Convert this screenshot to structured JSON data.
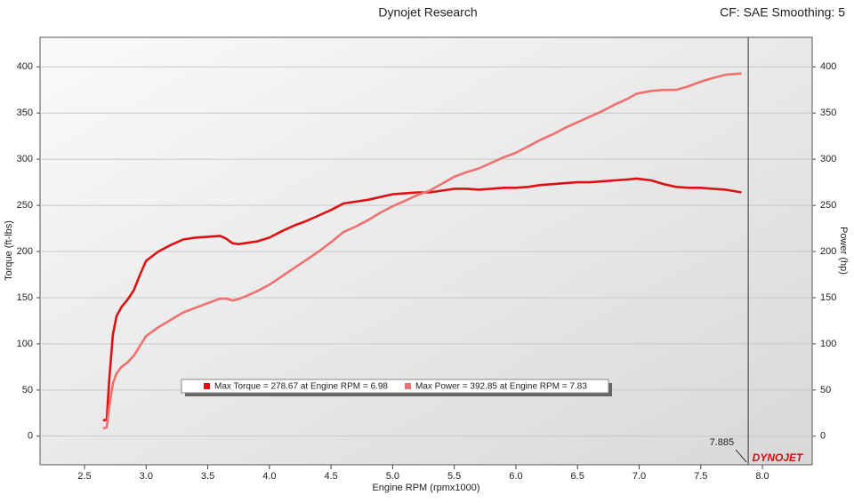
{
  "chart_data": {
    "type": "line",
    "title": "Dynojet Research",
    "annotation": "CF: SAE Smoothing: 5",
    "x_label": "Engine RPM (rpmx1000)",
    "y_label": "Torque (ft-lbs)",
    "y2_label": "Power (hp)",
    "logo_text": "DYNOJET",
    "cursor": 7.885,
    "x": [
      2.65,
      2.68,
      2.7,
      2.73,
      2.76,
      2.8,
      2.85,
      2.9,
      2.95,
      3.0,
      3.1,
      3.2,
      3.3,
      3.4,
      3.5,
      3.6,
      3.65,
      3.7,
      3.75,
      3.8,
      3.9,
      4.0,
      4.1,
      4.2,
      4.3,
      4.4,
      4.5,
      4.6,
      4.7,
      4.8,
      4.9,
      5.0,
      5.1,
      5.2,
      5.3,
      5.4,
      5.5,
      5.6,
      5.7,
      5.8,
      5.9,
      6.0,
      6.1,
      6.2,
      6.3,
      6.4,
      6.5,
      6.6,
      6.7,
      6.8,
      6.9,
      6.98,
      7.1,
      7.2,
      7.3,
      7.4,
      7.5,
      7.6,
      7.7,
      7.83
    ],
    "series": [
      {
        "name": "Max Torque = 278.67 at Engine RPM = 6.98",
        "color": "#dd1111",
        "values": [
          17,
          18,
          60,
          110,
          130,
          140,
          148,
          158,
          175,
          190,
          200,
          207,
          213,
          215,
          216,
          217,
          214,
          209,
          208,
          209,
          211,
          215,
          222,
          228,
          233,
          239,
          245,
          252,
          254,
          256,
          259,
          262,
          263,
          264,
          264,
          266,
          268,
          268,
          267,
          268,
          269,
          269,
          270,
          272,
          273,
          274,
          275,
          275,
          276,
          277,
          278,
          279,
          277,
          273,
          270,
          269,
          269,
          268,
          267,
          264
        ]
      },
      {
        "name": "Max Power = 392.85 at Engine RPM = 7.83",
        "color": "#f07070",
        "axis": "y2",
        "values": [
          8.6,
          9.2,
          30.8,
          57,
          68,
          75,
          80,
          87,
          98,
          108.5,
          118,
          126,
          134,
          139,
          144,
          149,
          149,
          147,
          148.5,
          151,
          157,
          164,
          173,
          182,
          191,
          200,
          210,
          221,
          227,
          234,
          242,
          249,
          255,
          261,
          266,
          273.5,
          281,
          286,
          290,
          296,
          302,
          307,
          314,
          321,
          327,
          334,
          340,
          346,
          352,
          359,
          365,
          371,
          374,
          375,
          375,
          379,
          384,
          388,
          391.5,
          392.85
        ]
      }
    ],
    "xlim": [
      2.139,
      8.404
    ],
    "xticks": [
      2.5,
      {
        "value": 3,
        "label": "3.0"
      },
      3.5,
      {
        "value": 4,
        "label": "4.0"
      },
      4.5,
      {
        "value": 5,
        "label": "5.0"
      },
      5.5,
      {
        "value": 6,
        "label": "6.0"
      },
      6.5,
      {
        "value": 7,
        "label": "7.0"
      },
      7.5,
      {
        "value": 8,
        "label": "8.0"
      }
    ],
    "ylim": [
      -31,
      432
    ],
    "yticks": [
      0,
      50,
      100,
      150,
      200,
      250,
      300,
      350,
      400
    ],
    "y2lim": [
      -31,
      432
    ],
    "y2ticks": [
      0,
      50,
      100,
      150,
      200,
      250,
      300,
      350,
      400
    ],
    "grid": true
  }
}
